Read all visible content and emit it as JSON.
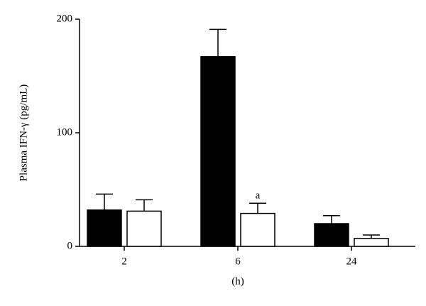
{
  "chart_data": {
    "type": "bar",
    "ylabel": "Plasma IFN-γ (pg/mL)",
    "xlabel": "(h)",
    "categories": [
      "2",
      "6",
      "24"
    ],
    "series": [
      {
        "color": "#000000",
        "values": [
          32,
          167,
          20
        ],
        "errors": [
          14,
          24,
          7
        ]
      },
      {
        "color": "#ffffff",
        "values": [
          31,
          29,
          7
        ],
        "errors": [
          10,
          9,
          3
        ],
        "annotations": [
          null,
          "a",
          null
        ]
      }
    ],
    "ylim": [
      0,
      200
    ],
    "yticks": [
      0,
      100,
      200
    ]
  }
}
